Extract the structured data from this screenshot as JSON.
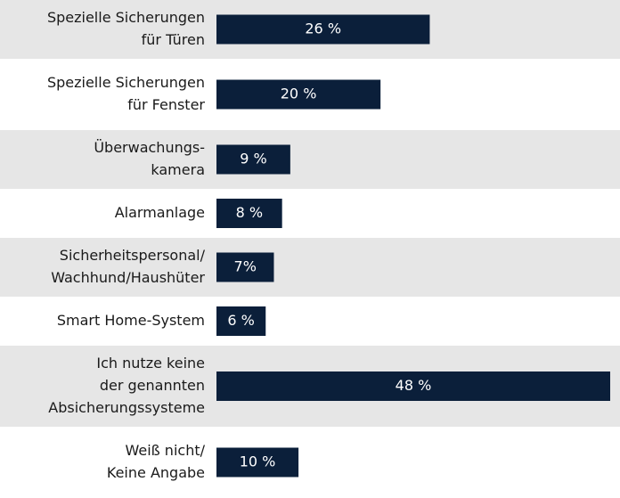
{
  "chart_data": {
    "type": "bar",
    "orientation": "horizontal",
    "categories": [
      [
        "Spezielle Sicherungen",
        "für Türen"
      ],
      [
        "Spezielle Sicherungen",
        "für Fenster"
      ],
      [
        "Überwachungs-",
        "kamera"
      ],
      [
        "Alarmanlage"
      ],
      [
        "Sicherheitspersonal/",
        "Wachhund/Haushüter"
      ],
      [
        "Smart Home-System"
      ],
      [
        "Ich nutze keine",
        "der genannten",
        "Absicherungssysteme"
      ],
      [
        "Weiß nicht/",
        "Keine Angabe"
      ]
    ],
    "values": [
      26,
      20,
      9,
      8,
      7,
      6,
      48,
      10
    ],
    "value_labels": [
      "26 %",
      "20 %",
      "9 %",
      "8 %",
      "7%",
      "6 %",
      "48 %",
      "10 %"
    ],
    "color": "#0b1f3a"
  }
}
